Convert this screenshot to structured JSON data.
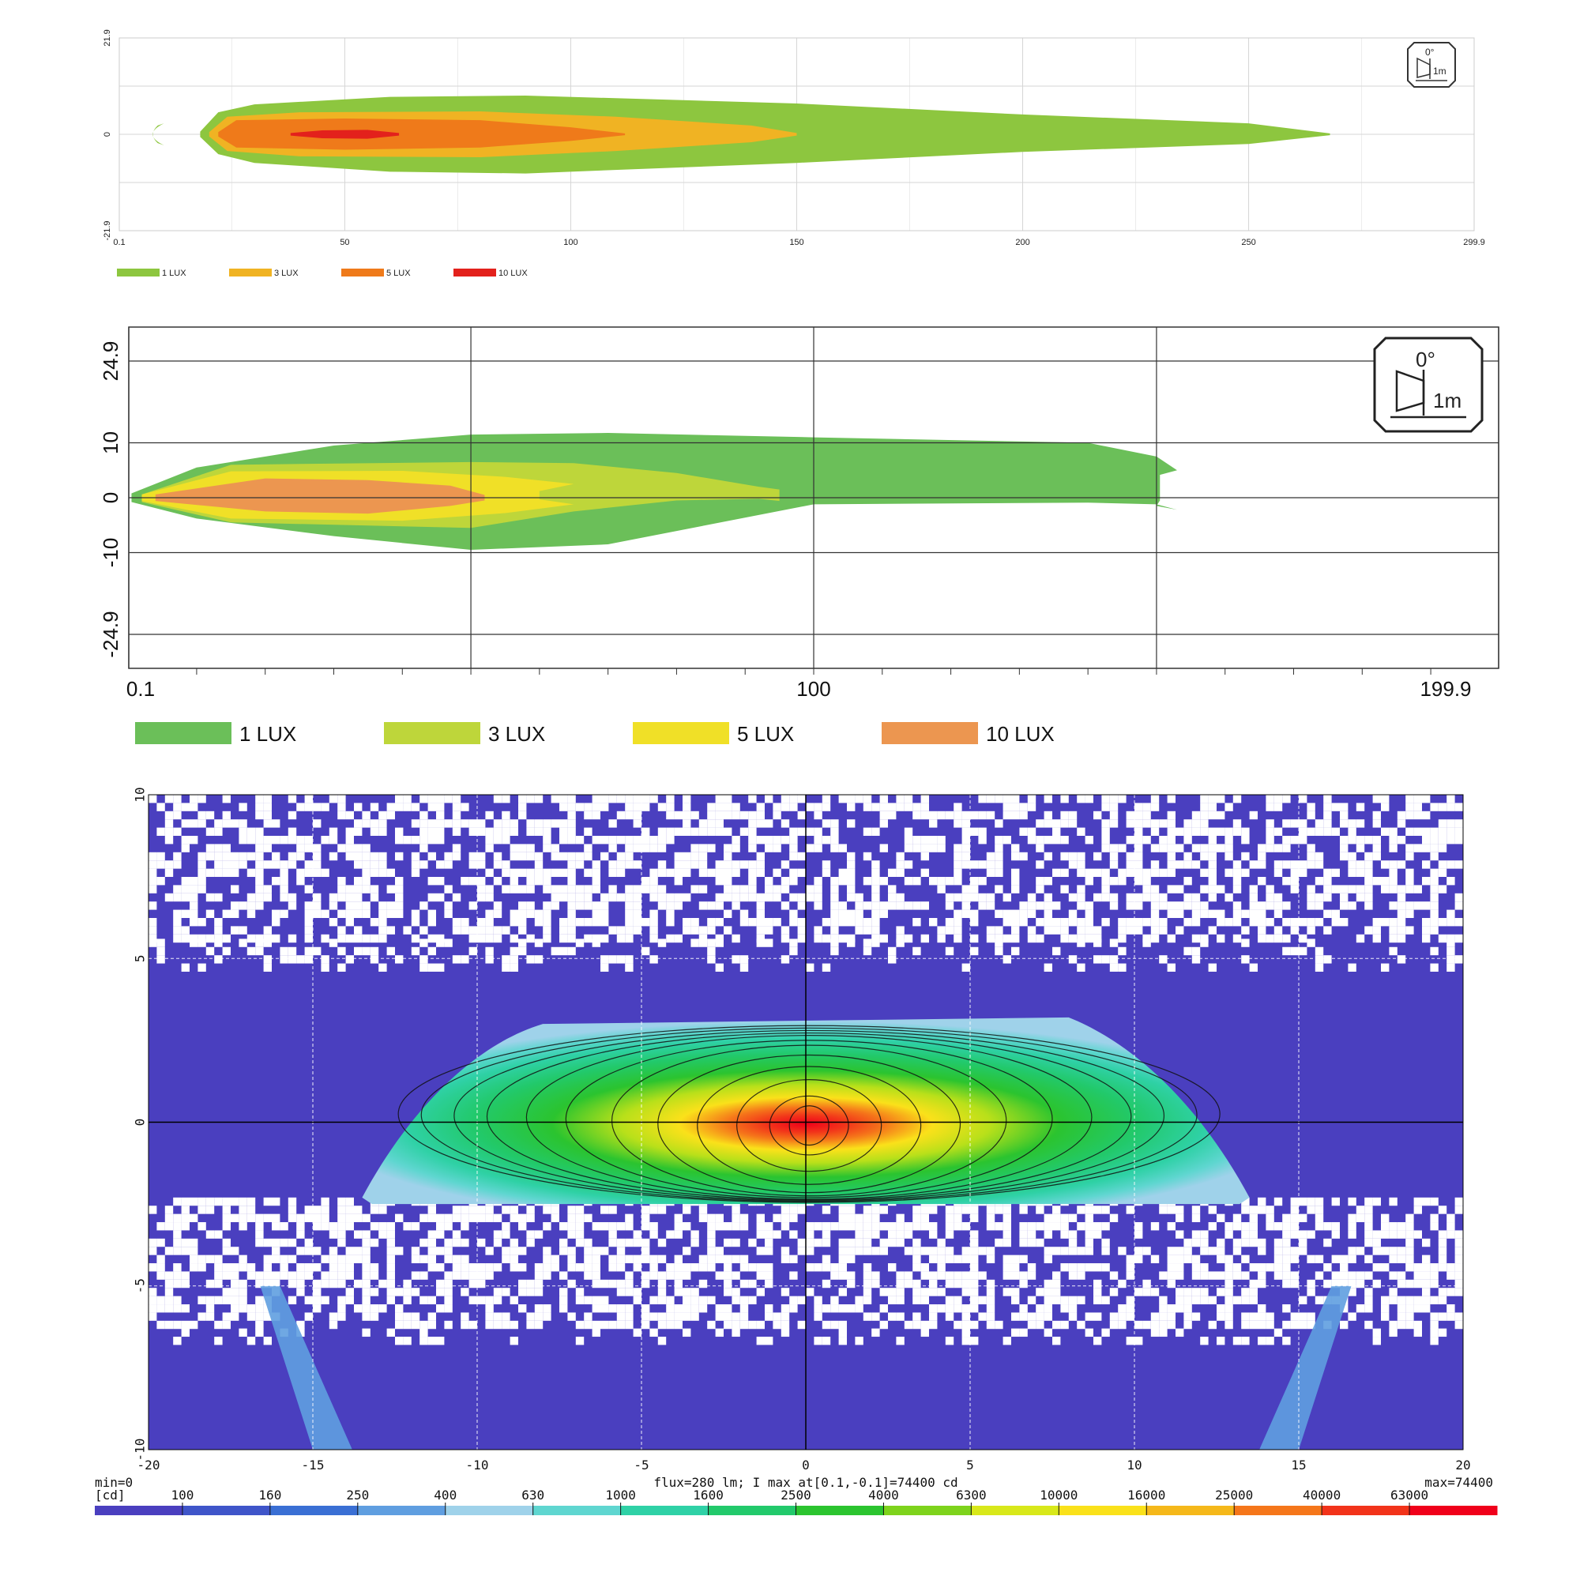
{
  "chart_data": [
    {
      "type": "area",
      "xlim": [
        0.1,
        299.9
      ],
      "ylim": [
        -21.9,
        21.9
      ],
      "xticks": [
        "0.1",
        "50",
        "100",
        "150",
        "200",
        "250",
        "299.9"
      ],
      "yticks": [
        "21.9",
        "0",
        "-21.9"
      ],
      "grid": true,
      "legend_position": "bottom-left",
      "icon": "beam-1m-icon",
      "icon_text": {
        "angle": "0°",
        "distance": "1m"
      },
      "series": [
        {
          "name": "1 LUX",
          "color": "#8dc63f",
          "reach": 268,
          "half_width_max": 9
        },
        {
          "name": "3 LUX",
          "color": "#f0b323",
          "reach": 150,
          "half_width_max": 5.2
        },
        {
          "name": "5 LUX",
          "color": "#ef7a1a",
          "reach": 112,
          "half_width_max": 3.6
        },
        {
          "name": "10 LUX",
          "color": "#e3211c",
          "reach": 62,
          "half_width_max": 1
        }
      ]
    },
    {
      "type": "area",
      "xlim": [
        0.1,
        199.9
      ],
      "ylim": [
        -24.9,
        24.9
      ],
      "xticks": [
        "0.1",
        "100",
        "199.9"
      ],
      "yticks": [
        "24.9",
        "10",
        "0",
        "-10",
        "-24.9"
      ],
      "grid": true,
      "legend_position": "bottom-left",
      "icon": "beam-1m-icon",
      "icon_text": {
        "angle": "0°",
        "distance": "1m"
      },
      "series": [
        {
          "name": "1 LUX",
          "color": "#6bbf59",
          "reach": 153
        },
        {
          "name": "3 LUX",
          "color": "#bed63a",
          "reach": 95
        },
        {
          "name": "5 LUX",
          "color": "#f0e027",
          "reach": 60
        },
        {
          "name": "10 LUX",
          "color": "#ec9650",
          "reach": 52
        }
      ]
    },
    {
      "type": "heatmap",
      "xlim": [
        -20,
        20
      ],
      "ylim": [
        -10,
        10
      ],
      "xticks": [
        "-20",
        "-15",
        "-10",
        "-5",
        "0",
        "5",
        "10",
        "15",
        "20"
      ],
      "yticks": [
        "10",
        "5",
        "0",
        "-5",
        "-10"
      ],
      "peak": {
        "x": 0.1,
        "y": -0.1,
        "value": 74400
      },
      "beam_extent": {
        "x": [
          -13.5,
          13.5
        ],
        "y": [
          -2.5,
          3.2
        ]
      },
      "footer": {
        "min": "min=0",
        "summary": "flux=280 lm; I max at[0.1,-0.1]=74400 cd",
        "max": "max=74400",
        "unit": "[cd]"
      },
      "colorbar": {
        "labels": [
          "100",
          "160",
          "250",
          "400",
          "630",
          "1000",
          "1600",
          "2500",
          "4000",
          "6300",
          "10000",
          "16000",
          "25000",
          "40000",
          "63000"
        ],
        "colors": [
          "#4a3fbf",
          "#3f55c9",
          "#3a6fd4",
          "#5f9ee0",
          "#9fd2ea",
          "#5fd6d0",
          "#2fd1a6",
          "#22c96b",
          "#2bc42f",
          "#7ed31c",
          "#d8e81a",
          "#fae11a",
          "#f5b81a",
          "#f5761a",
          "#f2331a",
          "#f0001a"
        ]
      }
    }
  ]
}
